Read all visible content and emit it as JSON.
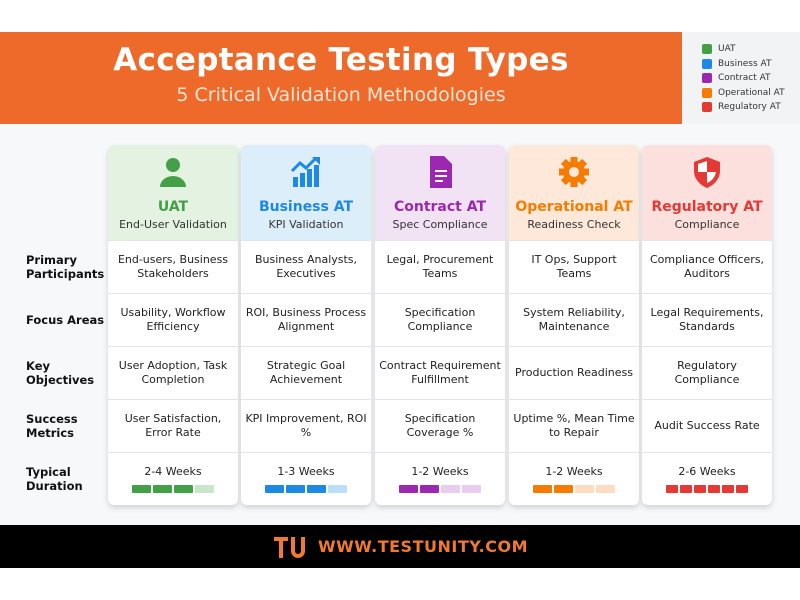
{
  "header": {
    "title": "Acceptance Testing Types",
    "subtitle": "5 Critical Validation Methodologies"
  },
  "legend": [
    {
      "label": "UAT",
      "color": "#43a047"
    },
    {
      "label": "Business AT",
      "color": "#1e88e5"
    },
    {
      "label": "Contract AT",
      "color": "#9c27b0"
    },
    {
      "label": "Operational AT",
      "color": "#f57c00"
    },
    {
      "label": "Regulatory AT",
      "color": "#e53935"
    }
  ],
  "row_labels": [
    "Primary Participants",
    "Focus Areas",
    "Key Objectives",
    "Success Metrics",
    "Typical Duration"
  ],
  "columns": [
    {
      "title": "UAT",
      "subtitle": "End-User Validation",
      "icon": "user-icon",
      "color": "#43a047",
      "tint": "#e3f2e1",
      "light": "#c8e6c9",
      "cells": [
        "End-users, Business Stakeholders",
        "Usability, Workflow Efficiency",
        "User Adoption, Task Completion",
        "User Satisfaction, Error Rate"
      ],
      "duration": "2-4 Weeks",
      "duration_filled": 3,
      "duration_total": 4
    },
    {
      "title": "Business AT",
      "subtitle": "KPI Validation",
      "icon": "chart-growth-icon",
      "color": "#1e88e5",
      "tint": "#ddeefb",
      "light": "#bbdefb",
      "cells": [
        "Business Analysts, Executives",
        "ROI, Business Process Alignment",
        "Strategic Goal Achievement",
        "KPI Improvement, ROI %"
      ],
      "duration": "1-3 Weeks",
      "duration_filled": 3,
      "duration_total": 4
    },
    {
      "title": "Contract AT",
      "subtitle": "Spec Compliance",
      "icon": "document-icon",
      "color": "#9c27b0",
      "tint": "#f1e2f4",
      "light": "#e8cdee",
      "cells": [
        "Legal, Procurement Teams",
        "Specification Compliance",
        "Contract Requirement Fulfillment",
        "Specification Coverage %"
      ],
      "duration": "1-2 Weeks",
      "duration_filled": 2,
      "duration_total": 4
    },
    {
      "title": "Operational AT",
      "subtitle": "Readiness Check",
      "icon": "gear-icon",
      "color": "#f57c00",
      "tint": "#fde8da",
      "light": "#ffdcc2",
      "cells": [
        "IT Ops, Support Teams",
        "System Reliability, Maintenance",
        "Production Readiness",
        "Uptime %, Mean Time to Repair"
      ],
      "duration": "1-2 Weeks",
      "duration_filled": 2,
      "duration_total": 4
    },
    {
      "title": "Regulatory AT",
      "subtitle": "Compliance",
      "icon": "shield-icon",
      "color": "#e53935",
      "tint": "#fbe0de",
      "light": "#f8c8c5",
      "cells": [
        "Compliance Officers, Auditors",
        "Legal Requirements, Standards",
        "Regulatory Compliance",
        "Audit Success Rate"
      ],
      "duration": "2-6 Weeks",
      "duration_filled": 6,
      "duration_total": 6
    }
  ],
  "footer": {
    "url": "WWW.TESTUNITY.COM",
    "logo": "TU"
  }
}
